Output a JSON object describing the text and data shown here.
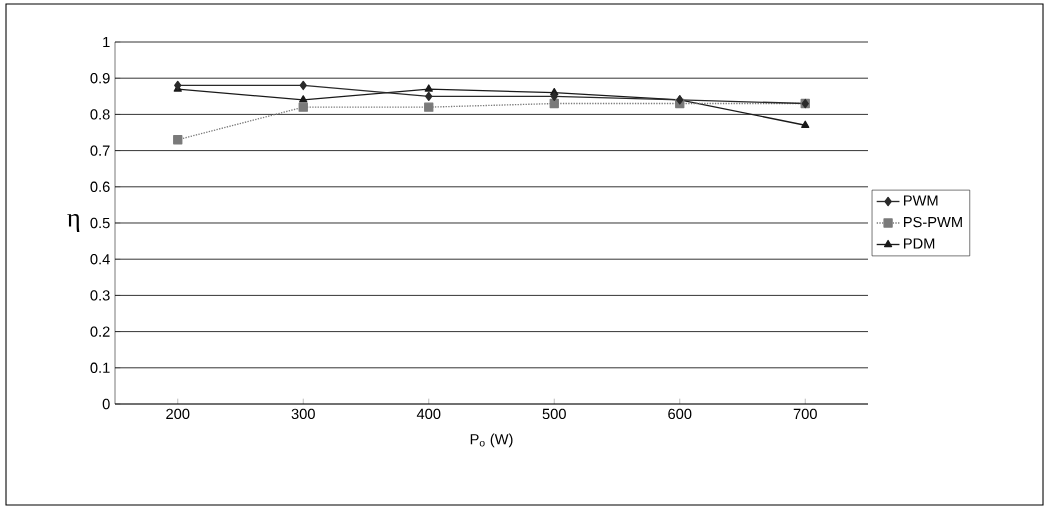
{
  "chart_data": {
    "type": "line",
    "xlabel": "P$_{o}$ (W)",
    "ylabel": "η",
    "categories": [
      "200",
      "300",
      "400",
      "500",
      "600",
      "700"
    ],
    "ylim": [
      0,
      1
    ],
    "yticks": [
      0,
      0.1,
      0.2,
      0.3,
      0.4,
      0.5,
      0.6,
      0.7,
      0.8,
      0.9,
      1
    ],
    "grid": "y",
    "legend": "right",
    "series": [
      {
        "name": "PWM",
        "color": "#2a2a2a",
        "marker": "diamond",
        "line_style": "solid",
        "values": [
          0.88,
          0.88,
          0.85,
          0.85,
          0.84,
          0.83
        ]
      },
      {
        "name": "PS-PWM",
        "color": "#7a7a7a",
        "marker": "square",
        "line_style": "dotted",
        "values": [
          0.73,
          0.82,
          0.82,
          0.83,
          0.83,
          0.83
        ]
      },
      {
        "name": "PDM",
        "color": "#1a1a1a",
        "marker": "triangle",
        "line_style": "solid",
        "values": [
          0.87,
          0.84,
          0.87,
          0.86,
          0.84,
          0.77
        ]
      }
    ]
  }
}
